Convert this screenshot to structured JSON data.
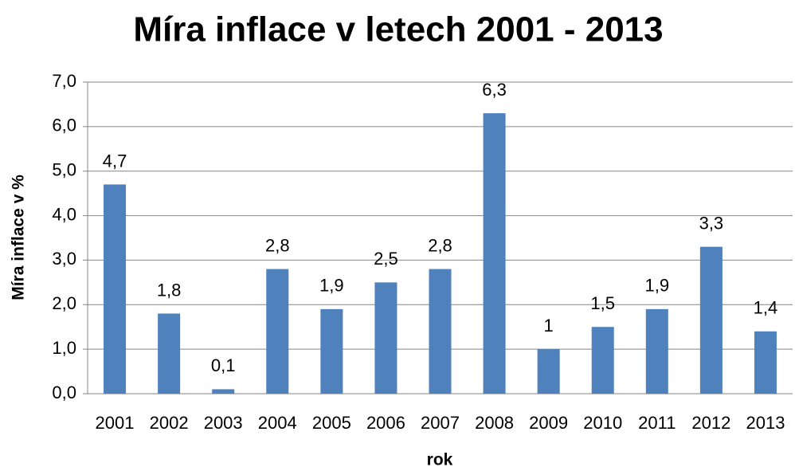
{
  "chart_data": {
    "type": "bar",
    "title": "Míra inflace v letech 2001 - 2013",
    "x_label": "rok",
    "y_label": "Míra inflace v %",
    "categories": [
      "2001",
      "2002",
      "2003",
      "2004",
      "2005",
      "2006",
      "2007",
      "2008",
      "2009",
      "2010",
      "2011",
      "2012",
      "2013"
    ],
    "values": [
      4.7,
      1.8,
      0.1,
      2.8,
      1.9,
      2.5,
      2.8,
      6.3,
      1,
      1.5,
      1.9,
      3.3,
      1.4
    ],
    "value_labels": [
      "4,7",
      "1,8",
      "0,1",
      "2,8",
      "1,9",
      "2,5",
      "2,8",
      "6,3",
      "1",
      "1,5",
      "1,9",
      "3,3",
      "1,4"
    ],
    "color": "#4f81bd",
    "ylim": [
      0,
      7
    ],
    "yticks": [
      {
        "value": 0,
        "label": "0,0"
      },
      {
        "value": 1,
        "label": "1,0"
      },
      {
        "value": 2,
        "label": "2,0"
      },
      {
        "value": 3,
        "label": "3,0"
      },
      {
        "value": 4,
        "label": "4,0"
      },
      {
        "value": 5,
        "label": "5,0"
      },
      {
        "value": 6,
        "label": "6,0"
      },
      {
        "value": 7,
        "label": "7,0"
      }
    ],
    "grid": true
  }
}
